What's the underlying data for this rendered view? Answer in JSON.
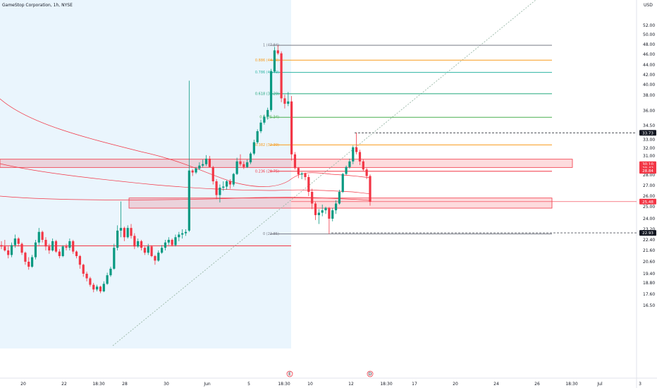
{
  "header": {
    "title": "GameStop Corporation, 1h, NYSE"
  },
  "chart_data": {
    "type": "candlestick",
    "currency": "USD",
    "y_range": [
      16.2,
      53.0
    ],
    "y_ticks": [
      {
        "v": 52.0,
        "l": "52.00"
      },
      {
        "v": 50.0,
        "l": "50.00"
      },
      {
        "v": 48.0,
        "l": "48.00"
      },
      {
        "v": 46.0,
        "l": "46.00"
      },
      {
        "v": 44.0,
        "l": "44.00"
      },
      {
        "v": 42.0,
        "l": "42.00"
      },
      {
        "v": 40.0,
        "l": "40.00"
      },
      {
        "v": 38.0,
        "l": "38.00"
      },
      {
        "v": 36.0,
        "l": "36.00"
      },
      {
        "v": 34.5,
        "l": "34.50"
      },
      {
        "v": 33.0,
        "l": "33.00"
      },
      {
        "v": 32.0,
        "l": "32.00"
      },
      {
        "v": 31.0,
        "l": "31.00"
      },
      {
        "v": 30.0,
        "l": "30.00"
      },
      {
        "v": 28.0,
        "l": "28.00"
      },
      {
        "v": 27.0,
        "l": "27.00"
      },
      {
        "v": 26.0,
        "l": "26.00"
      },
      {
        "v": 25.0,
        "l": "25.00"
      },
      {
        "v": 24.0,
        "l": "24.00"
      },
      {
        "v": 23.2,
        "l": "23.20"
      },
      {
        "v": 22.4,
        "l": "22.40"
      },
      {
        "v": 21.6,
        "l": "21.60"
      },
      {
        "v": 20.6,
        "l": "20.60"
      },
      {
        "v": 19.4,
        "l": "19.40"
      },
      {
        "v": 18.8,
        "l": "18.80"
      },
      {
        "v": 17.6,
        "l": "17.60"
      },
      {
        "v": 16.5,
        "l": "16.50"
      }
    ],
    "x_ticks": [
      "20",
      "22",
      "18:30",
      "28",
      "30",
      "Jun",
      "5",
      "18:30",
      "10",
      "12",
      "18:30",
      "17",
      "20",
      "24",
      "26",
      "18:30",
      "Jul",
      "3"
    ],
    "fib_levels": [
      {
        "label": "1 (47.84)",
        "value": 47.84,
        "color": "#787b86"
      },
      {
        "label": "0.886 (44.90)",
        "value": 44.9,
        "color": "#f89c1c"
      },
      {
        "label": "0.786 (42.49)",
        "value": 42.49,
        "color": "#2db5a3"
      },
      {
        "label": "0.618 (38.29)",
        "value": 38.29,
        "color": "#22a67c"
      },
      {
        "label": "0.5 (35.34)",
        "value": 35.34,
        "color": "#4caf50"
      },
      {
        "label": "0.382 (32.39)",
        "value": 32.39,
        "color": "#f89c1c"
      },
      {
        "label": "0.236 (28.75)",
        "value": 28.75,
        "color": "#f23645"
      },
      {
        "label": "0 (22.85)",
        "value": 22.85,
        "color": "#787b86"
      }
    ],
    "price_tags": [
      {
        "value": 33.73,
        "label": "33.73",
        "color": "#131722"
      },
      {
        "value": 30.1,
        "label": "30.10",
        "color": "#f23645"
      },
      {
        "value": 29.42,
        "label": "29.42",
        "color": "#f23645"
      },
      {
        "value": 28.84,
        "label": "28.84",
        "color": "#f23645"
      },
      {
        "value": 25.48,
        "label": "25.48",
        "color": "#f23645"
      },
      {
        "value": 22.93,
        "label": "22.93",
        "color": "#131722"
      }
    ],
    "event_markers": [
      "E",
      "D"
    ],
    "zones": [
      {
        "from": 29.52,
        "to": 30.64
      },
      {
        "from": 24.88,
        "to": 25.82
      }
    ],
    "support_line": 21.95,
    "candles": [
      [
        22.0,
        22.3,
        21.7,
        21.9
      ],
      [
        21.9,
        22.4,
        21.5,
        21.6
      ],
      [
        21.6,
        21.9,
        20.9,
        21.2
      ],
      [
        21.2,
        22.2,
        21.0,
        22.0
      ],
      [
        22.0,
        22.8,
        21.8,
        22.5
      ],
      [
        22.5,
        22.6,
        21.9,
        22.1
      ],
      [
        22.1,
        22.2,
        21.2,
        21.4
      ],
      [
        21.4,
        21.5,
        20.3,
        20.6
      ],
      [
        20.6,
        21.0,
        19.8,
        20.1
      ],
      [
        20.1,
        21.2,
        20.0,
        21.0
      ],
      [
        21.0,
        22.4,
        20.8,
        22.2
      ],
      [
        22.2,
        23.3,
        22.0,
        23.0
      ],
      [
        23.0,
        23.1,
        22.2,
        22.4
      ],
      [
        22.4,
        22.6,
        21.6,
        21.9
      ],
      [
        21.9,
        22.1,
        21.3,
        21.6
      ],
      [
        21.6,
        22.5,
        21.5,
        22.3
      ],
      [
        22.3,
        22.4,
        21.4,
        21.5
      ],
      [
        21.5,
        21.7,
        20.9,
        21.1
      ],
      [
        21.1,
        22.0,
        21.0,
        21.9
      ],
      [
        21.9,
        22.1,
        21.6,
        21.8
      ],
      [
        21.8,
        22.5,
        21.6,
        22.3
      ],
      [
        22.3,
        22.4,
        21.3,
        21.5
      ],
      [
        21.5,
        21.6,
        20.9,
        21.1
      ],
      [
        21.1,
        21.2,
        19.9,
        20.3
      ],
      [
        20.3,
        20.4,
        19.2,
        19.4
      ],
      [
        19.4,
        19.6,
        18.9,
        19.1
      ],
      [
        19.1,
        19.2,
        18.4,
        18.6
      ],
      [
        18.6,
        18.8,
        17.8,
        18.1
      ],
      [
        18.1,
        18.6,
        17.9,
        18.4
      ],
      [
        18.4,
        18.5,
        17.7,
        17.9
      ],
      [
        17.9,
        18.9,
        17.8,
        18.7
      ],
      [
        18.7,
        19.5,
        18.6,
        19.3
      ],
      [
        19.3,
        20.1,
        19.2,
        19.9
      ],
      [
        19.9,
        22.1,
        19.8,
        21.8
      ],
      [
        21.8,
        23.5,
        21.6,
        23.1
      ],
      [
        23.1,
        25.5,
        22.6,
        23.3
      ],
      [
        23.3,
        23.4,
        22.3,
        22.6
      ],
      [
        22.6,
        23.5,
        22.5,
        23.3
      ],
      [
        23.3,
        23.6,
        22.5,
        22.7
      ],
      [
        22.7,
        22.9,
        21.7,
        21.9
      ],
      [
        21.9,
        22.5,
        21.8,
        22.3
      ],
      [
        22.3,
        22.4,
        21.6,
        21.8
      ],
      [
        21.8,
        21.9,
        21.2,
        21.4
      ],
      [
        21.4,
        22.1,
        21.2,
        21.9
      ],
      [
        21.9,
        22.0,
        21.0,
        21.1
      ],
      [
        21.1,
        21.2,
        20.3,
        20.7
      ],
      [
        20.7,
        21.6,
        20.6,
        21.4
      ],
      [
        21.4,
        22.0,
        21.3,
        21.8
      ],
      [
        21.8,
        22.4,
        21.6,
        22.2
      ],
      [
        22.2,
        22.6,
        22.0,
        22.4
      ],
      [
        22.4,
        22.5,
        21.9,
        22.0
      ],
      [
        22.0,
        22.8,
        21.9,
        22.6
      ],
      [
        22.6,
        23.0,
        22.3,
        22.8
      ],
      [
        22.8,
        23.2,
        22.5,
        22.9
      ],
      [
        22.9,
        23.2,
        22.7,
        23.0
      ],
      [
        23.1,
        40.8,
        23.0,
        28.9
      ],
      [
        28.9,
        29.2,
        27.9,
        28.5
      ],
      [
        28.5,
        29.6,
        28.2,
        29.3
      ],
      [
        29.3,
        30.3,
        29.0,
        29.9
      ],
      [
        29.9,
        30.6,
        29.5,
        30.1
      ],
      [
        30.1,
        31.1,
        29.8,
        30.7
      ],
      [
        30.7,
        31.0,
        29.5,
        29.6
      ],
      [
        29.6,
        29.8,
        27.1,
        27.4
      ],
      [
        27.4,
        27.6,
        25.7,
        26.1
      ],
      [
        26.1,
        27.1,
        25.4,
        26.8
      ],
      [
        26.8,
        27.4,
        26.5,
        26.9
      ],
      [
        26.9,
        27.5,
        26.6,
        27.4
      ],
      [
        27.4,
        27.6,
        26.7,
        27.1
      ],
      [
        27.1,
        28.4,
        26.9,
        28.2
      ],
      [
        28.2,
        30.8,
        28.0,
        30.4
      ],
      [
        30.4,
        31.2,
        29.8,
        30.1
      ],
      [
        30.1,
        30.4,
        29.2,
        29.6
      ],
      [
        29.6,
        30.6,
        29.4,
        30.3
      ],
      [
        30.3,
        31.5,
        30.1,
        31.3
      ],
      [
        31.3,
        33.0,
        31.1,
        32.7
      ],
      [
        32.7,
        34.1,
        32.5,
        33.9
      ],
      [
        33.9,
        35.1,
        33.7,
        34.8
      ],
      [
        34.8,
        35.6,
        34.6,
        35.4
      ],
      [
        35.4,
        36.4,
        35.1,
        36.1
      ],
      [
        36.1,
        43.2,
        35.9,
        42.7
      ],
      [
        42.7,
        47.5,
        42.5,
        46.8
      ],
      [
        46.8,
        47.84,
        45.9,
        46.2
      ],
      [
        46.2,
        46.6,
        37.1,
        37.6
      ],
      [
        37.6,
        38.1,
        36.3,
        36.9
      ],
      [
        36.9,
        38.6,
        36.6,
        37.2
      ],
      [
        37.2,
        37.9,
        30.5,
        31.2
      ],
      [
        31.2,
        31.5,
        29.1,
        29.4
      ],
      [
        29.4,
        29.6,
        27.7,
        28.1
      ],
      [
        28.1,
        28.6,
        27.6,
        28.3
      ],
      [
        28.3,
        28.5,
        27.5,
        27.8
      ],
      [
        27.8,
        28.1,
        26.0,
        26.4
      ],
      [
        26.4,
        26.7,
        24.8,
        25.3
      ],
      [
        25.3,
        25.5,
        23.9,
        24.3
      ],
      [
        24.3,
        24.8,
        23.6,
        24.5
      ],
      [
        24.5,
        25.2,
        24.2,
        24.7
      ],
      [
        24.7,
        25.0,
        24.4,
        24.9
      ],
      [
        24.9,
        24.98,
        22.85,
        24.0
      ],
      [
        24.0,
        24.9,
        23.8,
        24.7
      ],
      [
        24.7,
        25.6,
        24.4,
        25.3
      ],
      [
        25.3,
        26.6,
        25.2,
        26.4
      ],
      [
        26.4,
        28.4,
        26.3,
        28.2
      ],
      [
        28.2,
        29.9,
        28.0,
        29.6
      ],
      [
        29.6,
        30.7,
        29.3,
        30.4
      ],
      [
        30.4,
        32.3,
        30.1,
        32.1
      ],
      [
        32.1,
        33.73,
        31.2,
        31.5
      ],
      [
        31.5,
        31.8,
        30.0,
        30.4
      ],
      [
        30.4,
        30.6,
        28.8,
        29.1
      ],
      [
        29.1,
        29.4,
        27.6,
        27.9
      ],
      [
        27.9,
        28.1,
        25.1,
        25.5
      ]
    ]
  }
}
